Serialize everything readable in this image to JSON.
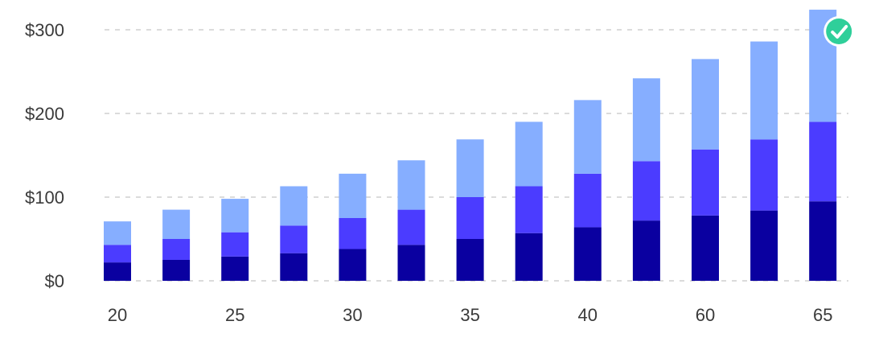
{
  "colors": {
    "segment_bottom": "#0a00a0",
    "segment_middle": "#4b3cff",
    "segment_top": "#86aeff",
    "grid": "#cfcfcf",
    "check_badge": "#2fcf9a",
    "check_mark": "#ffffff",
    "tick_text": "#3a3a3a"
  },
  "chart_data": {
    "type": "bar",
    "stacked": true,
    "title": "",
    "xlabel": "",
    "ylabel": "",
    "ylim": [
      0,
      300
    ],
    "y_ticks": [
      "$0",
      "$100",
      "$200",
      "$300"
    ],
    "y_tick_values": [
      0,
      100,
      200,
      300
    ],
    "x_tick_labels": [
      {
        "bar": 0,
        "label": "20"
      },
      {
        "bar": 2,
        "label": "25"
      },
      {
        "bar": 4,
        "label": "30"
      },
      {
        "bar": 6,
        "label": "35"
      },
      {
        "bar": 8,
        "label": "40"
      },
      {
        "bar": 10,
        "label": "60"
      },
      {
        "bar": 12,
        "label": "65"
      }
    ],
    "bar_count": 13,
    "grid": true,
    "series": [
      {
        "values": [
          22,
          25,
          29,
          33,
          38,
          43,
          50,
          57,
          64,
          72,
          78,
          84,
          95
        ]
      },
      {
        "values": [
          21,
          25,
          29,
          33,
          37,
          42,
          50,
          56,
          64,
          71,
          79,
          85,
          95
        ]
      },
      {
        "values": [
          28,
          35,
          40,
          47,
          53,
          59,
          69,
          77,
          88,
          99,
          108,
          117,
          134
        ]
      }
    ],
    "badge": {
      "bar": 12,
      "icon": "check-circle-icon"
    }
  }
}
